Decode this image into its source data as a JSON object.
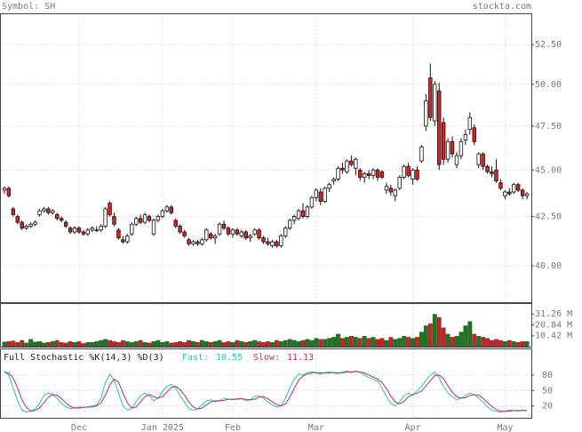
{
  "chart_data": {
    "type": "candlestick",
    "symbol_label": "Symbol: SH",
    "site": "stockta.com",
    "log_scale": true,
    "ylim": [
      38.25,
      54.5
    ],
    "yticks": [
      {
        "value": 40,
        "label": "40.00"
      },
      {
        "value": 42.5,
        "label": "42.50"
      },
      {
        "value": 45,
        "label": "45.00"
      },
      {
        "value": 47.5,
        "label": "47.50"
      },
      {
        "value": 50,
        "label": "50.00"
      },
      {
        "value": 52.5,
        "label": "52.50"
      }
    ],
    "xlim": [
      -0.8,
      120
    ],
    "xticks": [
      {
        "value": 17,
        "label": "Dec"
      },
      {
        "value": 36,
        "label": "Jan 2025"
      },
      {
        "value": 52,
        "label": "Feb"
      },
      {
        "value": 71,
        "label": "Mar"
      },
      {
        "value": 93,
        "label": "Apr"
      },
      {
        "value": 114,
        "label": "May"
      }
    ],
    "up_color": "#ffffff",
    "down_color": "#dd2222",
    "ohlc": [
      [
        43.9,
        44.1,
        43.7,
        44.0
      ],
      [
        44.0,
        44.1,
        43.5,
        43.6
      ],
      [
        42.9,
        43.0,
        42.5,
        42.6
      ],
      [
        42.5,
        42.6,
        42.1,
        42.2
      ],
      [
        42.2,
        42.3,
        41.8,
        41.9
      ],
      [
        41.9,
        42.1,
        41.8,
        42.0
      ],
      [
        42.0,
        42.2,
        41.9,
        42.1
      ],
      [
        42.1,
        42.3,
        42.0,
        42.2
      ],
      [
        42.6,
        42.9,
        42.5,
        42.8
      ],
      [
        42.8,
        43.0,
        42.7,
        42.9
      ],
      [
        42.9,
        43.0,
        42.6,
        42.7
      ],
      [
        42.7,
        42.9,
        42.6,
        42.8
      ],
      [
        42.6,
        42.7,
        42.3,
        42.4
      ],
      [
        42.4,
        42.5,
        42.2,
        42.3
      ],
      [
        42.2,
        42.3,
        41.9,
        42.0
      ],
      [
        41.9,
        42.0,
        41.6,
        41.7
      ],
      [
        41.7,
        42.0,
        41.6,
        41.9
      ],
      [
        41.9,
        42.0,
        41.6,
        41.7
      ],
      [
        41.7,
        41.8,
        41.5,
        41.6
      ],
      [
        41.6,
        41.9,
        41.5,
        41.8
      ],
      [
        41.8,
        42.0,
        41.7,
        41.9
      ],
      [
        41.8,
        42.0,
        41.7,
        41.8
      ],
      [
        41.8,
        42.1,
        41.7,
        42.0
      ],
      [
        42.0,
        43.0,
        41.9,
        42.9
      ],
      [
        43.2,
        43.3,
        42.5,
        42.6
      ],
      [
        42.5,
        42.7,
        42.0,
        42.1
      ],
      [
        41.8,
        41.9,
        41.3,
        41.4
      ],
      [
        41.3,
        41.5,
        41.1,
        41.2
      ],
      [
        41.2,
        41.6,
        41.1,
        41.5
      ],
      [
        41.6,
        42.2,
        41.5,
        42.1
      ],
      [
        42.1,
        42.5,
        42.0,
        42.4
      ],
      [
        42.4,
        42.6,
        42.1,
        42.2
      ],
      [
        42.2,
        42.7,
        42.1,
        42.6
      ],
      [
        42.5,
        42.6,
        42.2,
        42.3
      ],
      [
        41.6,
        42.4,
        41.5,
        42.3
      ],
      [
        42.3,
        42.6,
        42.2,
        42.5
      ],
      [
        42.5,
        42.9,
        42.4,
        42.8
      ],
      [
        42.8,
        43.1,
        42.7,
        43.0
      ],
      [
        43.0,
        43.1,
        42.6,
        42.7
      ],
      [
        42.3,
        42.4,
        41.9,
        42.0
      ],
      [
        42.0,
        42.1,
        41.6,
        41.7
      ],
      [
        41.7,
        41.8,
        41.4,
        41.5
      ],
      [
        41.3,
        41.4,
        41.0,
        41.1
      ],
      [
        41.1,
        41.3,
        41.0,
        41.2
      ],
      [
        41.2,
        41.3,
        41.0,
        41.1
      ],
      [
        41.1,
        41.4,
        41.0,
        41.3
      ],
      [
        41.3,
        41.9,
        41.2,
        41.8
      ],
      [
        41.6,
        41.7,
        41.3,
        41.4
      ],
      [
        41.4,
        41.6,
        41.1,
        41.5
      ],
      [
        41.6,
        42.2,
        41.5,
        42.1
      ],
      [
        42.1,
        42.3,
        41.8,
        41.9
      ],
      [
        41.9,
        42.0,
        41.5,
        41.6
      ],
      [
        41.6,
        41.9,
        41.4,
        41.8
      ],
      [
        41.8,
        41.9,
        41.5,
        41.6
      ],
      [
        41.5,
        41.8,
        41.4,
        41.7
      ],
      [
        41.7,
        41.8,
        41.3,
        41.4
      ],
      [
        41.4,
        41.6,
        41.2,
        41.5
      ],
      [
        41.6,
        41.9,
        41.5,
        41.8
      ],
      [
        41.8,
        41.9,
        41.3,
        41.4
      ],
      [
        41.4,
        41.5,
        41.1,
        41.2
      ],
      [
        41.2,
        41.4,
        41.0,
        41.1
      ],
      [
        41.0,
        41.3,
        40.9,
        41.2
      ],
      [
        41.2,
        41.3,
        40.9,
        41.0
      ],
      [
        41.0,
        41.6,
        40.9,
        41.5
      ],
      [
        41.5,
        42.0,
        41.4,
        41.9
      ],
      [
        41.9,
        42.4,
        41.8,
        42.3
      ],
      [
        42.3,
        42.6,
        42.1,
        42.5
      ],
      [
        42.4,
        42.9,
        42.3,
        42.8
      ],
      [
        42.8,
        43.2,
        42.4,
        42.5
      ],
      [
        42.5,
        43.1,
        42.4,
        43.0
      ],
      [
        43.0,
        43.6,
        42.9,
        43.5
      ],
      [
        43.5,
        44.0,
        43.3,
        43.9
      ],
      [
        43.8,
        44.0,
        43.1,
        43.3
      ],
      [
        43.3,
        44.1,
        43.2,
        44.0
      ],
      [
        44.0,
        44.3,
        43.8,
        44.2
      ],
      [
        44.4,
        44.6,
        44.2,
        44.5
      ],
      [
        44.5,
        45.2,
        44.4,
        45.1
      ],
      [
        45.1,
        45.4,
        44.8,
        45.0
      ],
      [
        44.9,
        45.6,
        44.8,
        45.5
      ],
      [
        45.5,
        45.8,
        45.2,
        45.3
      ],
      [
        45.1,
        45.7,
        44.7,
        45.6
      ],
      [
        45.0,
        45.1,
        44.4,
        44.6
      ],
      [
        44.6,
        44.9,
        44.3,
        44.8
      ],
      [
        44.8,
        45.0,
        44.5,
        44.7
      ],
      [
        44.7,
        45.1,
        44.5,
        45.0
      ],
      [
        45.0,
        45.1,
        44.4,
        44.6
      ],
      [
        44.9,
        45.0,
        44.5,
        44.6
      ],
      [
        43.9,
        44.3,
        43.7,
        44.1
      ],
      [
        44.0,
        44.2,
        43.6,
        43.8
      ],
      [
        43.6,
        44.0,
        43.3,
        43.9
      ],
      [
        44.0,
        44.7,
        43.9,
        44.6
      ],
      [
        44.6,
        45.3,
        44.5,
        45.2
      ],
      [
        45.2,
        45.4,
        44.6,
        44.7
      ],
      [
        44.5,
        45.1,
        44.2,
        45.0
      ],
      [
        45.0,
        45.2,
        44.4,
        44.5
      ],
      [
        45.5,
        46.4,
        45.4,
        46.3
      ],
      [
        47.5,
        49.4,
        47.2,
        49.0
      ],
      [
        50.4,
        51.3,
        47.8,
        48.0
      ],
      [
        47.8,
        50.2,
        47.5,
        50.0
      ],
      [
        49.6,
        50.1,
        45.0,
        45.3
      ],
      [
        47.7,
        48.0,
        45.3,
        45.6
      ],
      [
        45.6,
        46.8,
        45.4,
        46.6
      ],
      [
        46.6,
        46.9,
        45.7,
        45.9
      ],
      [
        45.3,
        46.0,
        45.1,
        45.8
      ],
      [
        45.8,
        46.8,
        45.6,
        46.6
      ],
      [
        46.7,
        47.3,
        46.4,
        47.0
      ],
      [
        47.3,
        48.3,
        47.0,
        48.0
      ],
      [
        47.4,
        47.6,
        46.4,
        46.6
      ],
      [
        45.3,
        46.0,
        45.1,
        45.9
      ],
      [
        45.9,
        46.0,
        45.0,
        45.2
      ],
      [
        45.2,
        45.3,
        44.8,
        44.9
      ],
      [
        44.9,
        45.2,
        44.6,
        44.8
      ],
      [
        45.0,
        45.6,
        44.3,
        44.4
      ],
      [
        44.3,
        44.5,
        43.9,
        44.0
      ],
      [
        43.6,
        43.9,
        43.4,
        43.8
      ],
      [
        43.8,
        44.0,
        43.6,
        43.7
      ],
      [
        43.8,
        44.3,
        43.7,
        44.2
      ],
      [
        44.2,
        44.3,
        43.8,
        43.9
      ],
      [
        43.9,
        44.0,
        43.4,
        43.6
      ],
      [
        43.6,
        43.8,
        43.4,
        43.7
      ]
    ],
    "volume": {
      "ylim": [
        0,
        40.8
      ],
      "yticks": [
        {
          "value": 10.42,
          "label": "10.42 M"
        },
        {
          "value": 20.84,
          "label": "20.84 M"
        },
        {
          "value": 31.26,
          "label": "31.26 M"
        }
      ],
      "up_color": "#1a7a1a",
      "down_color": "#cc2222",
      "values": [
        4.5,
        5,
        5.5,
        4,
        6,
        3.5,
        7,
        4.5,
        5,
        3.5,
        4,
        5,
        6,
        4,
        3.5,
        5,
        4,
        5,
        3,
        4,
        4,
        5,
        6,
        7,
        6,
        5,
        4,
        6,
        5,
        4,
        5,
        6,
        4,
        3.5,
        5,
        6,
        4,
        5,
        3.5,
        4,
        5,
        4,
        6,
        5,
        4,
        6,
        5,
        4,
        5,
        6,
        4,
        5,
        4,
        6,
        5,
        4,
        5,
        6,
        5,
        4,
        5,
        4,
        6,
        5,
        6,
        7,
        6,
        5,
        6,
        7,
        6,
        8,
        7,
        7,
        8,
        9,
        12,
        8,
        9,
        10,
        9,
        8,
        10,
        8,
        9,
        7,
        8,
        6,
        9,
        7,
        8,
        10,
        9,
        8,
        9,
        14,
        20,
        22,
        31,
        28,
        18,
        12,
        9,
        10,
        14,
        20,
        24,
        12,
        10,
        9,
        8,
        6,
        7,
        6,
        5,
        6,
        5,
        4,
        5,
        5
      ]
    },
    "stochastic": {
      "title": "Full Stochastic %K(14,3) %D(3)",
      "fast_label": "Fast:",
      "slow_label": "Slow:",
      "ylim": [
        -3,
        130
      ],
      "yticks": [
        20,
        50,
        80
      ],
      "k_color": "#33bbbb",
      "d_color": "#aa3366",
      "k": [
        88,
        80,
        55,
        30,
        12,
        8,
        10,
        14,
        25,
        40,
        45,
        42,
        35,
        25,
        18,
        15,
        16,
        18,
        17,
        18,
        20,
        22,
        35,
        65,
        82,
        70,
        45,
        20,
        12,
        15,
        28,
        40,
        45,
        40,
        30,
        35,
        48,
        58,
        62,
        55,
        40,
        28,
        15,
        12,
        14,
        22,
        30,
        32,
        28,
        30,
        35,
        33,
        32,
        34,
        35,
        30,
        32,
        38,
        40,
        35,
        28,
        22,
        18,
        20,
        35,
        55,
        72,
        82,
        80,
        85,
        86,
        84,
        82,
        85,
        86,
        84,
        83,
        86,
        88,
        85,
        88,
        85,
        80,
        75,
        72,
        68,
        55,
        38,
        25,
        20,
        28,
        40,
        45,
        40,
        50,
        58,
        70,
        80,
        86,
        75,
        58,
        45,
        38,
        32,
        35,
        40,
        45,
        42,
        35,
        28,
        18,
        12,
        9,
        8,
        10,
        12,
        11,
        10,
        12,
        10.55
      ],
      "d": [
        85,
        84,
        74,
        55,
        32,
        17,
        10,
        11,
        16,
        26,
        37,
        42,
        41,
        34,
        26,
        19,
        16,
        16,
        17,
        18,
        18,
        20,
        26,
        41,
        61,
        72,
        66,
        45,
        26,
        16,
        18,
        28,
        38,
        42,
        38,
        35,
        38,
        47,
        56,
        58,
        52,
        41,
        28,
        18,
        14,
        16,
        22,
        28,
        30,
        30,
        31,
        33,
        33,
        33,
        34,
        33,
        32,
        33,
        37,
        38,
        34,
        28,
        23,
        20,
        24,
        37,
        54,
        70,
        78,
        82,
        84,
        85,
        84,
        84,
        84,
        85,
        84,
        84,
        86,
        86,
        87,
        86,
        84,
        80,
        76,
        72,
        65,
        54,
        39,
        28,
        24,
        29,
        38,
        42,
        45,
        49,
        59,
        69,
        79,
        80,
        73,
        59,
        47,
        38,
        35,
        36,
        40,
        42,
        41,
        35,
        27,
        19,
        13,
        10,
        9,
        10,
        11,
        11,
        11,
        11.13
      ]
    }
  }
}
